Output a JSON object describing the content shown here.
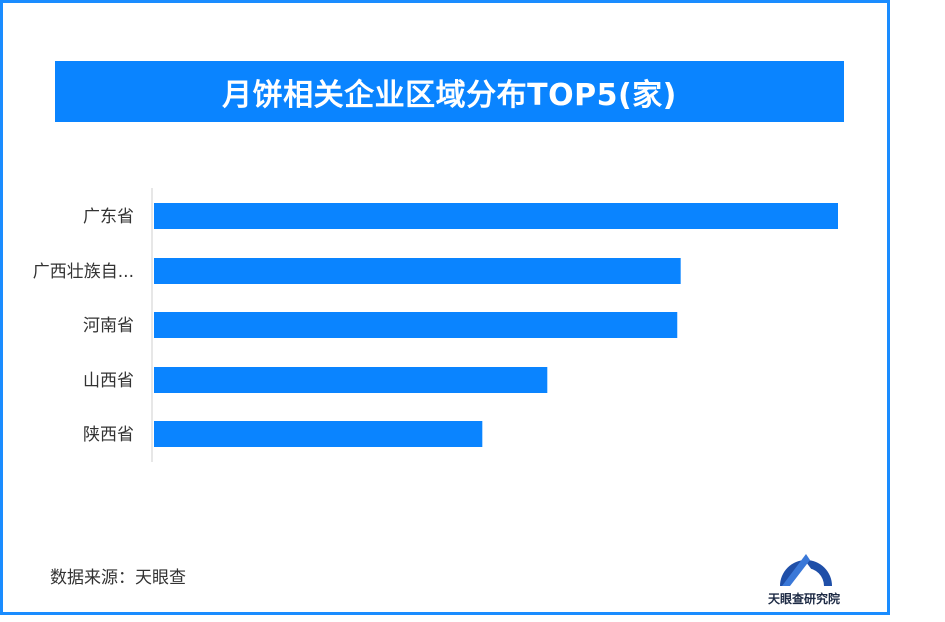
{
  "header": {
    "title": "月饼相关企业区域分布TOP5(家)"
  },
  "footer": {
    "source": "数据来源：天眼查",
    "brand": "天眼查研究院"
  },
  "colors": {
    "bar": "#0a84ff",
    "frame": "#1a8cff",
    "banner": "#0a84ff"
  },
  "chart_data": {
    "type": "bar",
    "orientation": "horizontal",
    "title": "月饼相关企业区域分布TOP5(家)",
    "categories": [
      "广东省",
      "广西壮族自...",
      "河南省",
      "山西省",
      "陕西省"
    ],
    "values": [
      100,
      77,
      76.5,
      57.5,
      48
    ],
    "value_scale": "relative",
    "xlabel": "",
    "ylabel": "",
    "grid": false,
    "legend": "none"
  }
}
